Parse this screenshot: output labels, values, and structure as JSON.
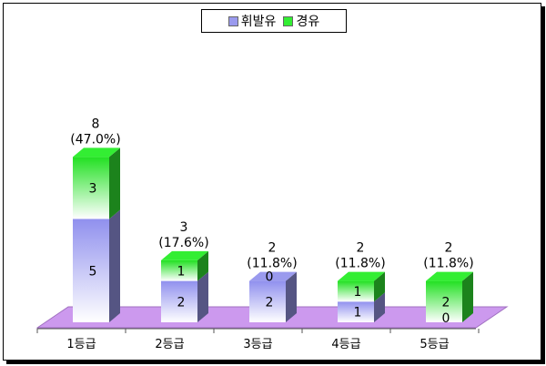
{
  "chart_data": {
    "type": "bar",
    "stacked": true,
    "style": "3d",
    "categories": [
      "1등급",
      "2등급",
      "3등급",
      "4등급",
      "5등급"
    ],
    "series": [
      {
        "name": "휘발유",
        "values": [
          5,
          2,
          2,
          1,
          0
        ],
        "color": "#9a9aee"
      },
      {
        "name": "경유",
        "values": [
          3,
          1,
          0,
          1,
          2
        ],
        "color": "#33ee33"
      }
    ],
    "totals": [
      "8",
      "3",
      "2",
      "2",
      "2"
    ],
    "percent_labels": [
      "(47.0%)",
      "(17.6%)",
      "(11.8%)",
      "(11.8%)",
      "(11.8%)"
    ],
    "legend_position": "top-center",
    "floor_color": "#cc99ee"
  }
}
